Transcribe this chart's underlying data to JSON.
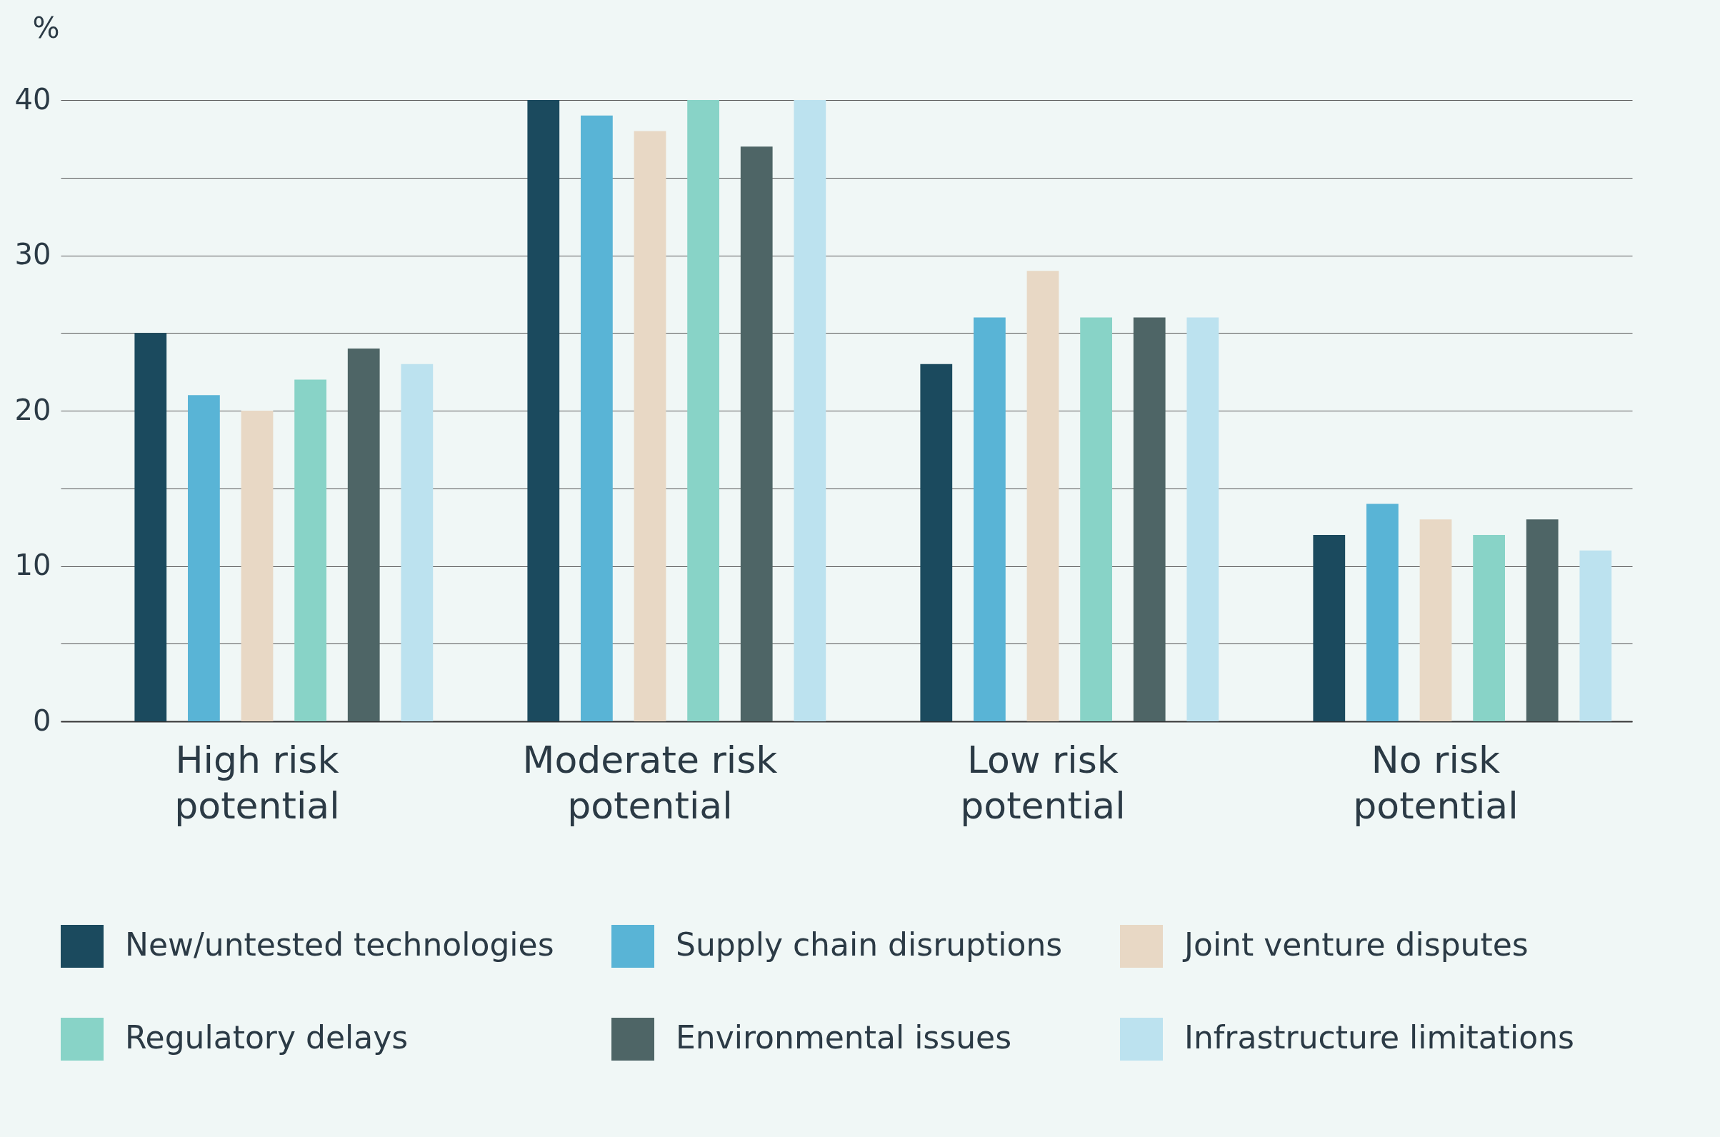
{
  "chart_data": {
    "type": "bar",
    "ylabel": "%",
    "categories": [
      "High risk potential",
      "Moderate risk potential",
      "Low risk potential",
      "No risk potential"
    ],
    "series": [
      {
        "name": "New/untested technologies",
        "color": "#1b4a5e",
        "values": [
          25,
          40,
          23,
          12
        ]
      },
      {
        "name": "Supply chain disruptions",
        "color": "#59b4d6",
        "values": [
          21,
          39,
          26,
          14
        ]
      },
      {
        "name": "Joint venture disputes",
        "color": "#e8d8c5",
        "values": [
          20,
          38,
          29,
          13
        ]
      },
      {
        "name": "Regulatory delays",
        "color": "#88d3c7",
        "values": [
          22,
          40,
          26,
          12
        ]
      },
      {
        "name": "Environmental issues",
        "color": "#4e6566",
        "values": [
          24,
          37,
          26,
          13
        ]
      },
      {
        "name": "Infrastructure limitations",
        "color": "#bce2ef",
        "values": [
          23,
          40,
          26,
          11
        ]
      }
    ],
    "ylim": [
      0,
      40
    ],
    "yticks": [
      0,
      {
        "value": 5,
        "label": null
      },
      10,
      {
        "value": 15,
        "label": null
      },
      20,
      {
        "value": 25,
        "label": null
      },
      30,
      {
        "value": 35,
        "label": null
      },
      40
    ],
    "grid": "y",
    "legend": "bottom"
  }
}
